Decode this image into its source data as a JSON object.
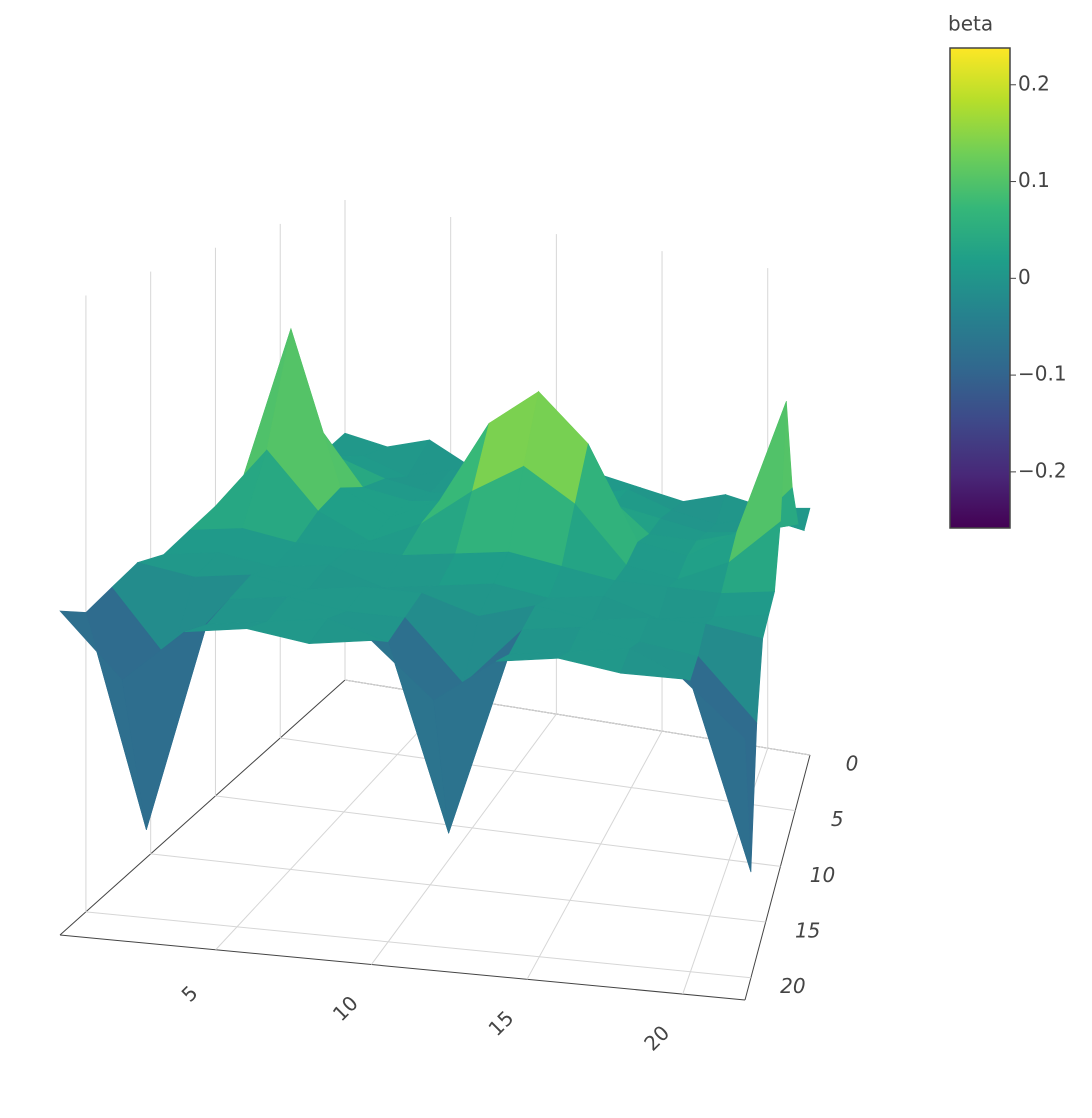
{
  "chart_data": {
    "type": "surface",
    "colorbar_title": "beta",
    "x": [
      0,
      2,
      4,
      6,
      8,
      10,
      12,
      14,
      16,
      18,
      20,
      22
    ],
    "y": [
      0,
      2,
      4,
      6,
      8,
      10,
      12,
      14,
      16,
      18,
      20,
      22
    ],
    "z": [
      [
        0.01,
        0.0,
        0.02,
        -0.01,
        0.01,
        0.0,
        0.01,
        0.0,
        -0.01,
        0.01,
        0.0,
        0.01
      ],
      [
        0.0,
        0.01,
        -0.01,
        0.01,
        0.0,
        0.01,
        0.0,
        0.02,
        0.0,
        -0.01,
        0.01,
        0.0
      ],
      [
        0.01,
        0.03,
        0.01,
        0.0,
        0.01,
        0.02,
        0.03,
        0.02,
        0.01,
        0.0,
        0.01,
        0.03
      ],
      [
        0.02,
        0.1,
        0.02,
        0.01,
        0.02,
        0.07,
        0.1,
        0.06,
        0.01,
        0.01,
        0.03,
        0.1
      ],
      [
        0.03,
        0.24,
        0.04,
        0.01,
        0.04,
        0.15,
        0.2,
        0.14,
        0.02,
        0.01,
        0.05,
        0.23
      ],
      [
        0.02,
        0.1,
        0.03,
        0.0,
        0.03,
        0.08,
        0.12,
        0.08,
        0.01,
        0.0,
        0.03,
        0.09
      ],
      [
        0.01,
        0.02,
        0.01,
        0.01,
        0.01,
        0.02,
        0.03,
        0.02,
        0.01,
        0.01,
        0.01,
        0.02
      ],
      [
        0.0,
        0.01,
        0.0,
        0.01,
        -0.01,
        0.0,
        0.01,
        0.0,
        0.01,
        -0.01,
        0.0,
        0.01
      ],
      [
        0.01,
        0.0,
        0.01,
        0.0,
        0.01,
        0.01,
        -0.01,
        0.01,
        0.0,
        0.01,
        0.01,
        0.0
      ],
      [
        0.0,
        -0.08,
        0.0,
        0.01,
        0.0,
        0.0,
        -0.07,
        0.0,
        0.01,
        0.0,
        -0.01,
        -0.08
      ],
      [
        -0.01,
        -0.25,
        -0.01,
        0.0,
        0.01,
        -0.01,
        -0.22,
        -0.01,
        0.0,
        0.01,
        -0.02,
        -0.23
      ],
      [
        0.01,
        -0.06,
        0.0,
        0.01,
        0.0,
        0.01,
        -0.05,
        0.0,
        0.01,
        0.0,
        0.0,
        -0.06
      ]
    ],
    "xlim": [
      0,
      22
    ],
    "ylim": [
      0,
      22
    ],
    "zlim": [
      -0.35,
      0.35
    ],
    "xticks": [
      5,
      10,
      15,
      20
    ],
    "yticks": [
      0,
      5,
      10,
      15,
      20
    ],
    "clim": [
      -0.258,
      0.238
    ],
    "cticks": [
      {
        "value": 0.2,
        "label": "0.2"
      },
      {
        "value": 0.1,
        "label": "0.1"
      },
      0,
      {
        "value": -0.1,
        "label": "−0.1"
      },
      {
        "value": -0.2,
        "label": "−0.2"
      }
    ],
    "colorscale": [
      "#440154",
      "#482878",
      "#3e4989",
      "#31688e",
      "#26828e",
      "#1f9e89",
      "#35b779",
      "#6ece58",
      "#b5de2b",
      "#fde725"
    ],
    "grid": true
  }
}
